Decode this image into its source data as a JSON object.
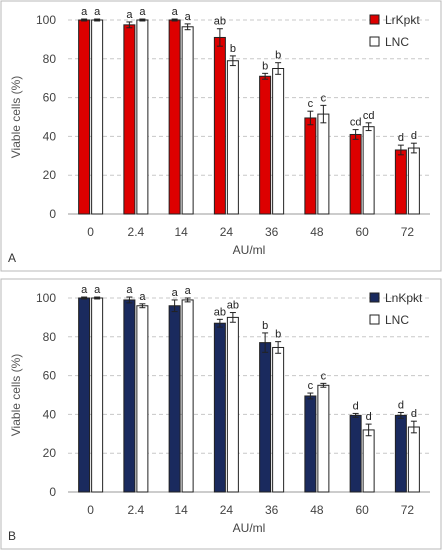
{
  "chart_data": [
    {
      "type": "bar",
      "panel_label": "A",
      "xlabel": "AU/ml",
      "ylabel": "Viable cells (%)",
      "ylim": [
        0,
        100
      ],
      "yticks": [
        0,
        20,
        40,
        60,
        80,
        100
      ],
      "grid": true,
      "legend_position": "top-right",
      "categories": [
        "0",
        "2.4",
        "14",
        "24",
        "36",
        "48",
        "60",
        "72"
      ],
      "series": [
        {
          "name": "LrKpkt",
          "color": "#dd0000",
          "values": [
            100,
            97.5,
            100,
            91,
            71,
            49.5,
            41,
            33
          ],
          "errors": [
            0.5,
            1.5,
            0.5,
            4.5,
            1.5,
            3.5,
            2.5,
            2.5
          ],
          "labels": [
            "a",
            "a",
            "a",
            "ab",
            "b",
            "c",
            "cd",
            "d"
          ]
        },
        {
          "name": "LNC",
          "color": "#ffffff",
          "values": [
            100,
            100,
            96.5,
            79,
            75,
            51.5,
            45,
            34
          ],
          "errors": [
            0.5,
            0.5,
            1.5,
            2.5,
            3,
            4.5,
            2,
            2.5
          ],
          "labels": [
            "a",
            "a",
            "a",
            "b",
            "b",
            "c",
            "cd",
            "d"
          ]
        }
      ]
    },
    {
      "type": "bar",
      "panel_label": "B",
      "xlabel": "AU/ml",
      "ylabel": "Viable cells (%)",
      "ylim": [
        0,
        100
      ],
      "yticks": [
        0,
        20,
        40,
        60,
        80,
        100
      ],
      "grid": true,
      "legend_position": "top-right",
      "categories": [
        "0",
        "2.4",
        "14",
        "24",
        "36",
        "48",
        "60",
        "72"
      ],
      "series": [
        {
          "name": "LnKpkt",
          "color": "#1a2a5e",
          "values": [
            100,
            99,
            96,
            87,
            77,
            49.5,
            39.5,
            39.5
          ],
          "errors": [
            0.5,
            1.5,
            3,
            2,
            5,
            1.5,
            1,
            1.5
          ],
          "labels": [
            "a",
            "a",
            "a",
            "ab",
            "b",
            "c",
            "d",
            "d"
          ]
        },
        {
          "name": "LNC",
          "color": "#ffffff",
          "values": [
            100,
            96,
            99,
            90,
            74.5,
            55,
            32,
            33.5
          ],
          "errors": [
            0.5,
            1,
            1,
            2.5,
            3,
            1,
            3,
            3
          ],
          "labels": [
            "a",
            "a",
            "a",
            "ab",
            "b",
            "c",
            "d",
            "d"
          ]
        }
      ]
    }
  ]
}
